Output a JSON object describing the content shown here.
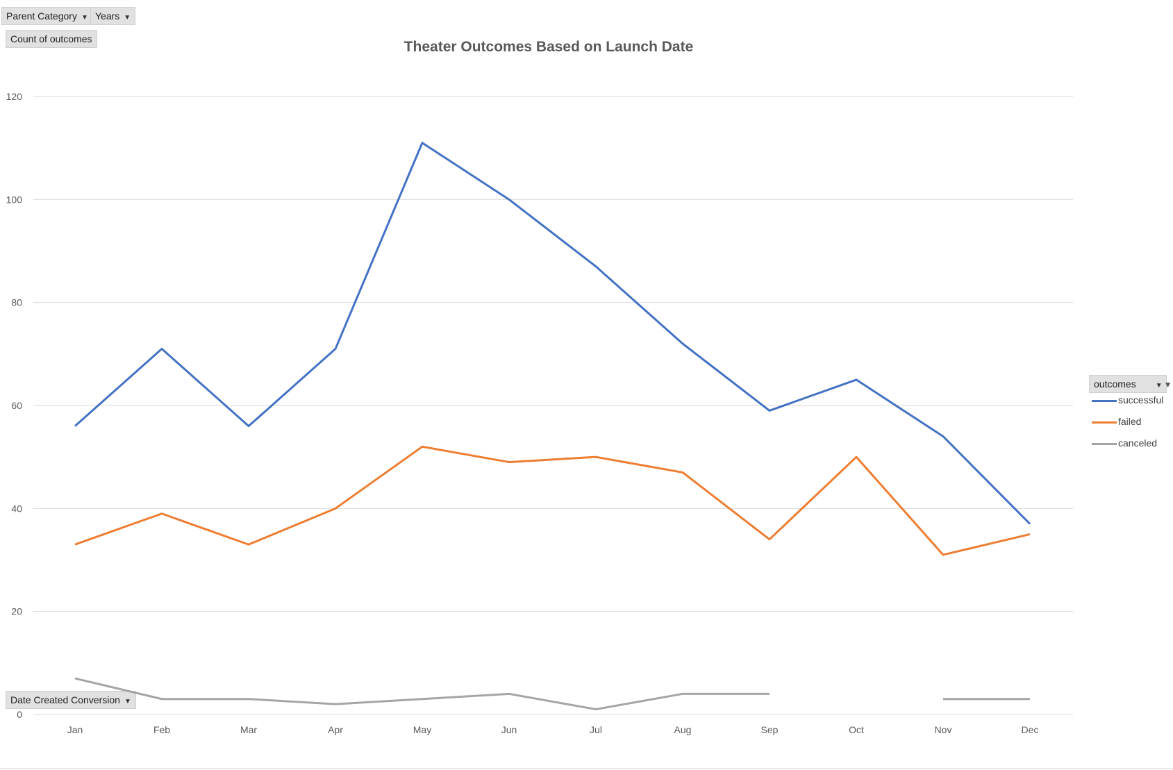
{
  "filters": {
    "parent_category": "Parent Category",
    "years": "Years",
    "values_field": "Count of outcomes",
    "axis_field": "Date Created Conversion",
    "legend_field": "outcomes"
  },
  "colors": {
    "successful": "#4472c4",
    "failed": "#ed7d31",
    "canceled": "#a5a5a5",
    "gridline": "#d9d9d9",
    "axis_text": "#595959"
  },
  "chart_data": {
    "type": "line",
    "title": "Theater Outcomes Based on Launch Date",
    "categories": [
      "Jan",
      "Feb",
      "Mar",
      "Apr",
      "May",
      "Jun",
      "Jul",
      "Aug",
      "Sep",
      "Oct",
      "Nov",
      "Dec"
    ],
    "ylim": [
      0,
      120
    ],
    "yticks": [
      0,
      20,
      40,
      60,
      80,
      100,
      120
    ],
    "grid": true,
    "legend_position": "right",
    "series": [
      {
        "name": "successful",
        "color": "#4472c4",
        "values": [
          56,
          71,
          56,
          71,
          111,
          100,
          87,
          72,
          59,
          65,
          54,
          37
        ]
      },
      {
        "name": "failed",
        "color": "#ed7d31",
        "values": [
          33,
          39,
          33,
          40,
          52,
          49,
          50,
          47,
          34,
          50,
          31,
          35
        ]
      },
      {
        "name": "canceled",
        "color": "#a5a5a5",
        "values": [
          7,
          3,
          3,
          2,
          3,
          4,
          1,
          4,
          4,
          null,
          3,
          3
        ]
      }
    ]
  }
}
